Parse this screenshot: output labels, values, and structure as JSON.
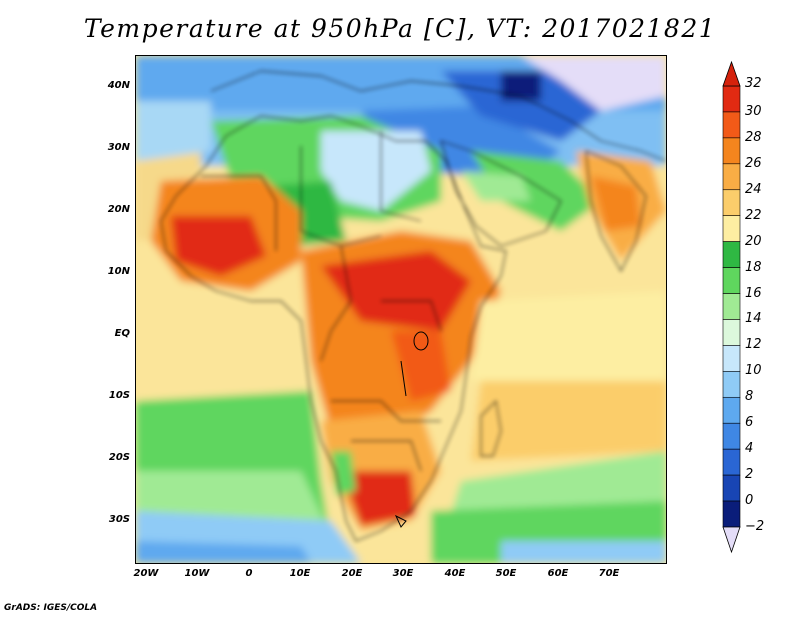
{
  "title": "Temperature at 950hPa [C], VT: 2017021821",
  "credit": "GrADS: IGES/COLA",
  "lat_labels": [
    "40N",
    "30N",
    "20N",
    "10N",
    "EQ",
    "10S",
    "20S",
    "30S"
  ],
  "lon_labels": [
    "20W",
    "10W",
    "0",
    "10E",
    "20E",
    "30E",
    "40E",
    "50E",
    "60E",
    "70E"
  ],
  "colorbar": {
    "labels": [
      "32",
      "30",
      "28",
      "26",
      "24",
      "22",
      "20",
      "18",
      "16",
      "14",
      "12",
      "10",
      "8",
      "6",
      "4",
      "2",
      "0",
      "−2"
    ],
    "colors": [
      "#e12a12",
      "#f25a18",
      "#f4851e",
      "#f9ad45",
      "#fbcd6b",
      "#fdeea2",
      "#2fb843",
      "#5fd65e",
      "#a0ea94",
      "#dcf8dc",
      "#c7e7fb",
      "#8fcbf6",
      "#5ea9ef",
      "#3f87e4",
      "#2a66d4",
      "#1845b4",
      "#0a1d7a"
    ],
    "over_color": "#d5220c",
    "under_color": "#e4ddf8"
  }
}
